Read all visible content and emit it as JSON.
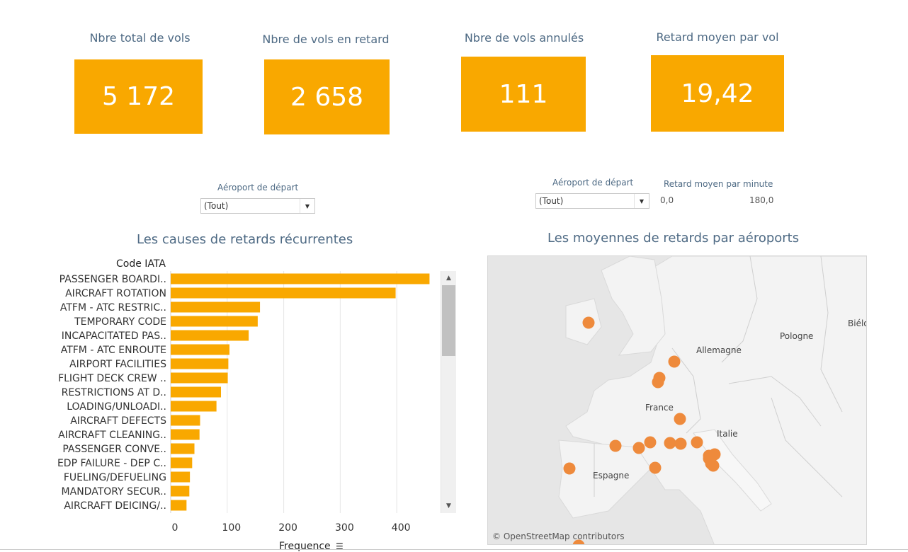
{
  "kpis": [
    {
      "title": "Nbre total de vols",
      "value": "5 172"
    },
    {
      "title": "Nbre de vols en retard",
      "value": "2 658"
    },
    {
      "title": "Nbre de vols annulés",
      "value": "111"
    },
    {
      "title": "Retard moyen par vol",
      "value": "19,42"
    }
  ],
  "filters": {
    "left": {
      "label": "Aéroport de départ",
      "value": "(Tout)"
    },
    "right": {
      "label": "Aéroport de départ",
      "value": "(Tout)"
    },
    "range": {
      "label": "Retard moyen par minute",
      "min": "0,0",
      "max": "180,0"
    }
  },
  "left_section": {
    "title": "Les causes de retards récurrentes",
    "column_header": "Code IATA",
    "xaxis_title": "Frequence"
  },
  "right_section": {
    "title": "Les moyennes de retards par aéroports",
    "attribution": "© OpenStreetMap contributors"
  },
  "colors": {
    "accent": "#f9a800",
    "marker": "#ee8a3c",
    "title": "#4e6a84"
  },
  "chart_data": {
    "type": "bar",
    "orientation": "horizontal",
    "categories": [
      "PASSENGER BOARDI..",
      "AIRCRAFT ROTATION",
      "ATFM - ATC RESTRIC..",
      "TEMPORARY CODE",
      "INCAPACITATED PAS..",
      "ATFM - ATC ENROUTE",
      "AIRPORT FACILITIES",
      "FLIGHT DECK CREW ..",
      "RESTRICTIONS AT D..",
      "LOADING/UNLOADI..",
      "AIRCRAFT DEFECTS",
      "AIRCRAFT CLEANING..",
      "PASSENGER CONVE..",
      "EDP FAILURE - DEP C..",
      "FUELING/DEFUELING",
      "MANDATORY SECUR..",
      "AIRCRAFT DEICING/.."
    ],
    "values": [
      458,
      398,
      158,
      154,
      138,
      104,
      102,
      101,
      89,
      81,
      52,
      51,
      42,
      38,
      34,
      33,
      28
    ],
    "xlabel": "Frequence",
    "ylabel": "Code IATA",
    "xticks": [
      0,
      100,
      200,
      300,
      400
    ],
    "xlim": [
      0,
      475
    ],
    "grid": true
  },
  "map": {
    "country_labels": [
      "Pologne",
      "Biélo",
      "Allemagne",
      "France",
      "Italie",
      "Espagne"
    ],
    "airport_count": 19
  }
}
